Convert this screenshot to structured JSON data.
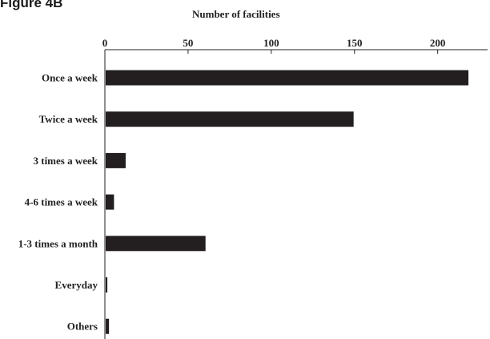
{
  "figure_label": "Figure 4B",
  "chart_data": {
    "type": "bar",
    "orientation": "horizontal",
    "title": "",
    "xlabel": "Number of facilities",
    "ylabel": "",
    "categories": [
      "Once a week",
      "Twice a week",
      "3 times a week",
      "4-6 times a week",
      "1-3 times a month",
      "Everyday",
      "Others"
    ],
    "values": [
      218,
      149,
      12,
      5,
      60,
      1,
      2
    ],
    "xlim": [
      0,
      230
    ],
    "x_ticks": [
      0,
      50,
      100,
      150,
      200
    ],
    "x_tick_labels": [
      "0",
      "50",
      "100",
      "150",
      "200"
    ],
    "grid": false,
    "legend": "none",
    "bar_color": "#231f20"
  }
}
